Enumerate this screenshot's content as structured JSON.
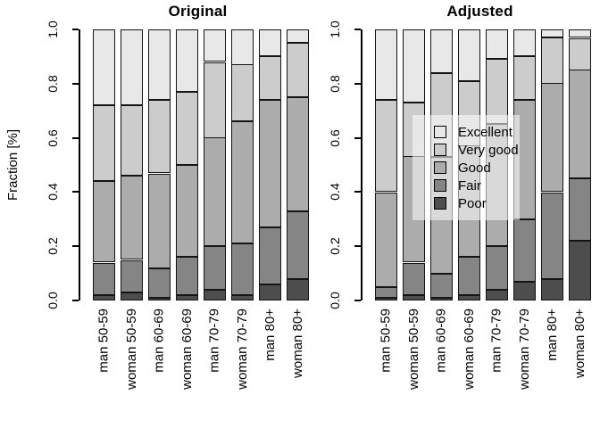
{
  "figure": {
    "background": "#ffffff"
  },
  "colors": {
    "palette": {
      "Excellent": "#E8E8E8",
      "Very good": "#CCCCCC",
      "Good": "#ACACAC",
      "Fair": "#858585",
      "Poor": "#4D4D4D"
    },
    "segment_border": "#141414",
    "axis": "#000000",
    "text": "#000000",
    "legend_bg": "rgba(255,255,255,0.55)"
  },
  "chart_data": [
    {
      "type": "bar",
      "stacked": true,
      "title": "Original",
      "ylabel": "Fraction [%]",
      "ylim": [
        0,
        1
      ],
      "grid": false,
      "yticks": [
        "0.0",
        "0.2",
        "0.4",
        "0.6",
        "0.8",
        "1.0"
      ],
      "categories": [
        "man 50-59",
        "woman 50-59",
        "man 60-69",
        "woman 60-69",
        "man 70-79",
        "woman 70-79",
        "man 80+",
        "woman 80+"
      ],
      "stack_order_bottom_to_top": [
        "Poor",
        "Fair",
        "Good",
        "Very good",
        "Excellent"
      ],
      "series": [
        {
          "name": "Poor",
          "values": [
            0.02,
            0.03,
            0.01,
            0.02,
            0.04,
            0.02,
            0.06,
            0.08
          ]
        },
        {
          "name": "Fair",
          "values": [
            0.12,
            0.12,
            0.11,
            0.14,
            0.16,
            0.19,
            0.21,
            0.25
          ]
        },
        {
          "name": "Good",
          "values": [
            0.3,
            0.31,
            0.35,
            0.34,
            0.4,
            0.45,
            0.47,
            0.42
          ]
        },
        {
          "name": "Very good",
          "values": [
            0.28,
            0.26,
            0.27,
            0.27,
            0.28,
            0.21,
            0.16,
            0.2
          ]
        },
        {
          "name": "Excellent",
          "values": [
            0.28,
            0.28,
            0.26,
            0.23,
            0.12,
            0.13,
            0.1,
            0.05
          ]
        }
      ],
      "legend": {
        "visible": false,
        "labels": []
      }
    },
    {
      "type": "bar",
      "stacked": true,
      "title": "Adjusted",
      "ylabel": "",
      "ylim": [
        0,
        1
      ],
      "grid": false,
      "yticks": [
        "0.0",
        "0.2",
        "0.4",
        "0.6",
        "0.8",
        "1.0"
      ],
      "categories": [
        "man 50-59",
        "woman 50-59",
        "man 60-69",
        "woman 60-69",
        "man 70-79",
        "woman 70-79",
        "man 80+",
        "woman 80+"
      ],
      "stack_order_bottom_to_top": [
        "Poor",
        "Fair",
        "Good",
        "Very good",
        "Excellent"
      ],
      "series": [
        {
          "name": "Poor",
          "values": [
            0.01,
            0.02,
            0.01,
            0.02,
            0.04,
            0.07,
            0.08,
            0.22
          ]
        },
        {
          "name": "Fair",
          "values": [
            0.04,
            0.12,
            0.09,
            0.14,
            0.16,
            0.23,
            0.32,
            0.23
          ]
        },
        {
          "name": "Good",
          "values": [
            0.35,
            0.39,
            0.43,
            0.41,
            0.45,
            0.44,
            0.4,
            0.4
          ]
        },
        {
          "name": "Very good",
          "values": [
            0.34,
            0.2,
            0.31,
            0.24,
            0.24,
            0.16,
            0.17,
            0.12
          ]
        },
        {
          "name": "Excellent",
          "values": [
            0.26,
            0.27,
            0.16,
            0.19,
            0.11,
            0.1,
            0.03,
            0.03
          ]
        }
      ],
      "legend": {
        "visible": true,
        "position": "center",
        "labels": [
          "Excellent",
          "Very good",
          "Good",
          "Fair",
          "Poor"
        ]
      }
    }
  ]
}
